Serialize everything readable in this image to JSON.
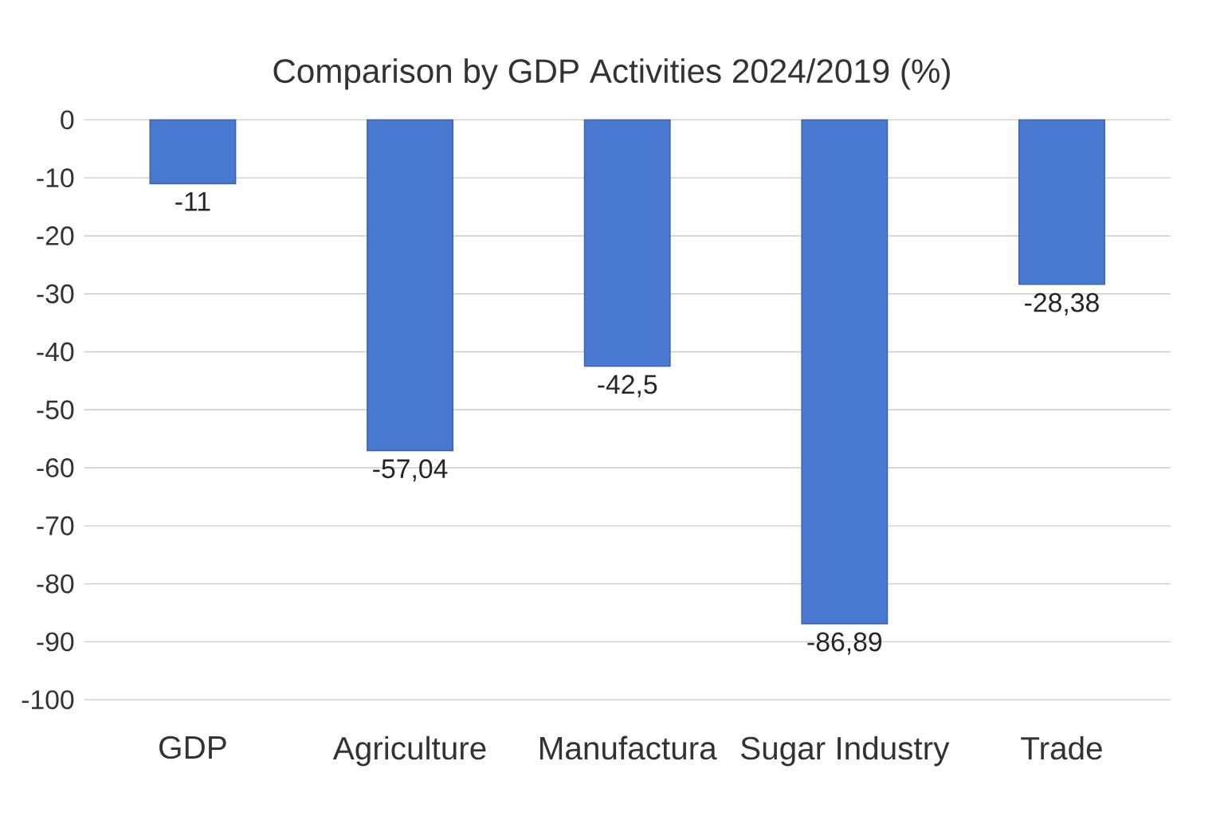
{
  "chart_data": {
    "type": "bar",
    "title": "Comparison by GDP Activities 2024/2019 (%)",
    "categories": [
      "GDP",
      "Agriculture",
      "Manufactura",
      "Sugar Industry",
      "Trade"
    ],
    "values": [
      -11,
      -57.04,
      -42.5,
      -86.89,
      -28.38
    ],
    "value_labels": [
      "-11",
      "-57,04",
      "-42,5",
      "-86,89",
      "-28,38"
    ],
    "color": "#4878cf",
    "ylim": [
      -100,
      0
    ],
    "yticks": [
      -100,
      -90,
      -80,
      -70,
      -60,
      -50,
      -40,
      -30,
      -20,
      -10,
      0
    ],
    "grid": "y"
  }
}
